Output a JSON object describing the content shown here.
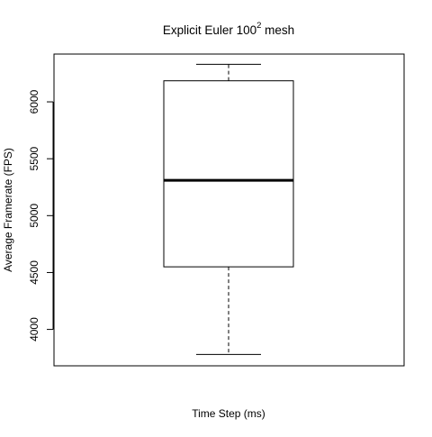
{
  "chart_data": {
    "type": "boxplot",
    "title_main": "Explicit Euler  100",
    "title_superscript": "2",
    "title_suffix": "  mesh",
    "xlabel": "Time Step (ms)",
    "ylabel": "Average Framerate (FPS)",
    "ylim": [
      3680,
      6420
    ],
    "y_ticks": [
      4000,
      4500,
      5000,
      5500,
      6000
    ],
    "y_tick_labels": [
      "4000",
      "4500",
      "5000",
      "5500",
      "6000"
    ],
    "grid": false,
    "series": [
      {
        "whisker_low": 3780,
        "q1": 4550,
        "median": 5310,
        "q3": 6185,
        "whisker_high": 6330
      }
    ]
  }
}
